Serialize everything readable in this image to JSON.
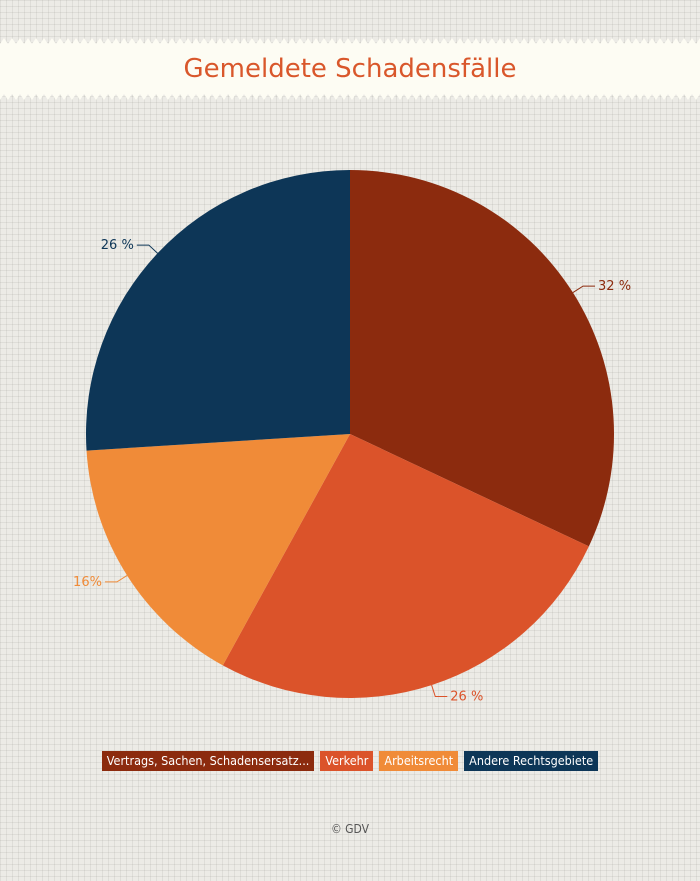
{
  "title": "Gemeldete Schadensfälle",
  "source": "© GDV",
  "colors": {
    "title": "#d9572b",
    "banner": "#fdfcf3"
  },
  "chart_data": {
    "type": "pie",
    "title": "Gemeldete Schadensfälle",
    "start": "top, clockwise",
    "legend_position": "bottom",
    "slices": [
      {
        "name": "Vertrags, Sachen, Schadensersatz...",
        "value": 32,
        "label": "32 %",
        "color": "#8c2b0e"
      },
      {
        "name": "Verkehr",
        "value": 26,
        "label": "26 %",
        "color": "#db532a"
      },
      {
        "name": "Arbeitsrecht",
        "value": 16,
        "label": "16%",
        "color": "#f08b38"
      },
      {
        "name": "Andere Rechtsgebiete",
        "value": 26,
        "label": "26 %",
        "color": "#0d3657"
      }
    ]
  }
}
